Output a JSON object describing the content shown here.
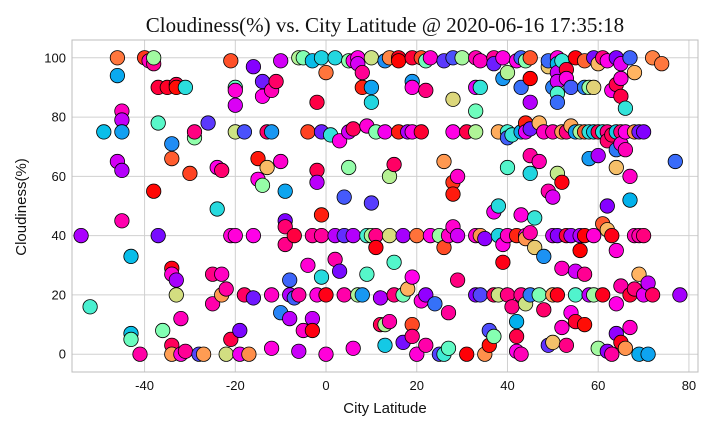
{
  "chart_data": {
    "type": "scatter",
    "title": "Cloudiness(%) vs. City Latitude @ 2020-06-16 17:35:18",
    "xlabel": "City Latitude",
    "ylabel": "Cloudiness(%)",
    "xlim": [
      -56,
      82
    ],
    "ylim": [
      -6,
      106
    ],
    "xticks": [
      -40,
      -20,
      0,
      20,
      40,
      60,
      80
    ],
    "yticks": [
      0,
      20,
      40,
      60,
      80,
      100
    ],
    "grid": true,
    "marker_edge_color": "#000000",
    "colormap": "rainbow",
    "points": [
      [
        -54,
        40
      ],
      [
        -52,
        16
      ],
      [
        -49,
        75
      ],
      [
        -46,
        94
      ],
      [
        -46,
        100
      ],
      [
        -45,
        82
      ],
      [
        -45,
        79
      ],
      [
        -45,
        75
      ],
      [
        -46,
        65
      ],
      [
        -45,
        62
      ],
      [
        -45,
        45
      ],
      [
        -43,
        33
      ],
      [
        -43,
        7
      ],
      [
        -43,
        5
      ],
      [
        -41,
        0
      ],
      [
        -40,
        100
      ],
      [
        -39,
        99
      ],
      [
        -38,
        98
      ],
      [
        -38,
        55
      ],
      [
        -38,
        100
      ],
      [
        -37,
        90
      ],
      [
        -37,
        78
      ],
      [
        -37,
        40
      ],
      [
        -36,
        8
      ],
      [
        -35,
        90
      ],
      [
        -34,
        66
      ],
      [
        -34,
        71
      ],
      [
        -34,
        29
      ],
      [
        -34,
        27
      ],
      [
        -34,
        3
      ],
      [
        -34,
        0
      ],
      [
        -33,
        91
      ],
      [
        -33,
        90
      ],
      [
        -33,
        20
      ],
      [
        -33,
        25
      ],
      [
        -32,
        12
      ],
      [
        -32,
        0
      ],
      [
        -31,
        1
      ],
      [
        -31,
        90
      ],
      [
        -30,
        61
      ],
      [
        -29,
        73
      ],
      [
        -29,
        75
      ],
      [
        -28,
        0
      ],
      [
        -27,
        0
      ],
      [
        -26,
        78
      ],
      [
        -25,
        27
      ],
      [
        -25,
        17
      ],
      [
        -24,
        63
      ],
      [
        -24,
        49
      ],
      [
        -23,
        27
      ],
      [
        -23,
        20
      ],
      [
        -23,
        62
      ],
      [
        -22,
        22
      ],
      [
        -22,
        0
      ],
      [
        -21,
        40
      ],
      [
        -21,
        5
      ],
      [
        -21,
        99
      ],
      [
        -20,
        90
      ],
      [
        -20,
        89
      ],
      [
        -20,
        84
      ],
      [
        -20,
        75
      ],
      [
        -20,
        40
      ],
      [
        -19,
        0
      ],
      [
        -19,
        8
      ],
      [
        -18,
        75
      ],
      [
        -18,
        20
      ],
      [
        -17,
        0
      ],
      [
        -16,
        97
      ],
      [
        -16,
        40
      ],
      [
        -16,
        19
      ],
      [
        -15,
        59
      ],
      [
        -15,
        66
      ],
      [
        -14,
        57
      ],
      [
        -14,
        92
      ],
      [
        -14,
        87
      ],
      [
        -13,
        75
      ],
      [
        -13,
        63
      ],
      [
        -12,
        89
      ],
      [
        -12,
        75
      ],
      [
        -12,
        20
      ],
      [
        -12,
        2
      ],
      [
        -11,
        92
      ],
      [
        -10,
        99
      ],
      [
        -10,
        14
      ],
      [
        -10,
        65
      ],
      [
        -9,
        55
      ],
      [
        -9,
        45
      ],
      [
        -9,
        43
      ],
      [
        -9,
        37
      ],
      [
        -8,
        25
      ],
      [
        -8,
        20
      ],
      [
        -8,
        12
      ],
      [
        -7,
        40
      ],
      [
        -7,
        19
      ],
      [
        -6,
        20
      ],
      [
        -6,
        1
      ],
      [
        -6,
        100
      ],
      [
        -5,
        100
      ],
      [
        -5,
        8
      ],
      [
        -4,
        75
      ],
      [
        -4,
        30
      ],
      [
        -3,
        99
      ],
      [
        -3,
        40
      ],
      [
        -3,
        12
      ],
      [
        -3,
        8
      ],
      [
        -2,
        85
      ],
      [
        -2,
        62
      ],
      [
        -2,
        58
      ],
      [
        -2,
        20
      ],
      [
        -1,
        100
      ],
      [
        -1,
        75
      ],
      [
        -1,
        47
      ],
      [
        -1,
        40
      ],
      [
        -1,
        26
      ],
      [
        0,
        0
      ],
      [
        0,
        95
      ],
      [
        0,
        20
      ],
      [
        1,
        74
      ],
      [
        2,
        100
      ],
      [
        2,
        40
      ],
      [
        2,
        32
      ],
      [
        3,
        28
      ],
      [
        3,
        72
      ],
      [
        4,
        53
      ],
      [
        4,
        40
      ],
      [
        4,
        20
      ],
      [
        5,
        63
      ],
      [
        5,
        75
      ],
      [
        5,
        99
      ],
      [
        6,
        99
      ],
      [
        6,
        76
      ],
      [
        6,
        40
      ],
      [
        6,
        2
      ],
      [
        7,
        100
      ],
      [
        7,
        98
      ],
      [
        7,
        20
      ],
      [
        8,
        90
      ],
      [
        8,
        95
      ],
      [
        8,
        20
      ],
      [
        9,
        77
      ],
      [
        9,
        40
      ],
      [
        9,
        27
      ],
      [
        10,
        100
      ],
      [
        10,
        90
      ],
      [
        10,
        85
      ],
      [
        10,
        51
      ],
      [
        10,
        40
      ],
      [
        11,
        75
      ],
      [
        11,
        40
      ],
      [
        11,
        36
      ],
      [
        12,
        19
      ],
      [
        12,
        10
      ],
      [
        13,
        99
      ],
      [
        13,
        75
      ],
      [
        13,
        10
      ],
      [
        13,
        3
      ],
      [
        14,
        100
      ],
      [
        14,
        60
      ],
      [
        14,
        40
      ],
      [
        14,
        11
      ],
      [
        15,
        64
      ],
      [
        15,
        31
      ],
      [
        15,
        20
      ],
      [
        16,
        100
      ],
      [
        16,
        99
      ],
      [
        16,
        75
      ],
      [
        17,
        40
      ],
      [
        17,
        20
      ],
      [
        17,
        4
      ],
      [
        18,
        75
      ],
      [
        18,
        22
      ],
      [
        19,
        100
      ],
      [
        19,
        92
      ],
      [
        19,
        90
      ],
      [
        19,
        75
      ],
      [
        19,
        26
      ],
      [
        19,
        10
      ],
      [
        19,
        6
      ],
      [
        20,
        40
      ],
      [
        20,
        0
      ],
      [
        21,
        100
      ],
      [
        21,
        75
      ],
      [
        21,
        18
      ],
      [
        22,
        99
      ],
      [
        22,
        89
      ],
      [
        22,
        20
      ],
      [
        22,
        3
      ],
      [
        23,
        100
      ],
      [
        23,
        40
      ],
      [
        24,
        17
      ],
      [
        25,
        40
      ],
      [
        25,
        0
      ],
      [
        26,
        99
      ],
      [
        26,
        65
      ],
      [
        26,
        36
      ],
      [
        26,
        0
      ],
      [
        27,
        40
      ],
      [
        27,
        14
      ],
      [
        27,
        2
      ],
      [
        28,
        100
      ],
      [
        28,
        86
      ],
      [
        28,
        75
      ],
      [
        28,
        58
      ],
      [
        28,
        54
      ],
      [
        28,
        43
      ],
      [
        29,
        60
      ],
      [
        29,
        40
      ],
      [
        29,
        25
      ],
      [
        30,
        100
      ],
      [
        31,
        75
      ],
      [
        31,
        0
      ],
      [
        33,
        100
      ],
      [
        33,
        90
      ],
      [
        33,
        82
      ],
      [
        33,
        75
      ],
      [
        33,
        40
      ],
      [
        33,
        20
      ],
      [
        34,
        99
      ],
      [
        34,
        90
      ],
      [
        34,
        40
      ],
      [
        34,
        20
      ],
      [
        35,
        39
      ],
      [
        35,
        0
      ],
      [
        36,
        8
      ],
      [
        36,
        3
      ],
      [
        37,
        100
      ],
      [
        37,
        98
      ],
      [
        37,
        48
      ],
      [
        37,
        20
      ],
      [
        37,
        6
      ],
      [
        38,
        75
      ],
      [
        38,
        50
      ],
      [
        38,
        40
      ],
      [
        38,
        20
      ],
      [
        39,
        100
      ],
      [
        39,
        93
      ],
      [
        39,
        37
      ],
      [
        39,
        31
      ],
      [
        40,
        95
      ],
      [
        40,
        75
      ],
      [
        40,
        73
      ],
      [
        40,
        63
      ],
      [
        40,
        40
      ],
      [
        40,
        20
      ],
      [
        41,
        74
      ],
      [
        41,
        16
      ],
      [
        42,
        11
      ],
      [
        42,
        99
      ],
      [
        42,
        40
      ],
      [
        42,
        6
      ],
      [
        42,
        1
      ],
      [
        43,
        100
      ],
      [
        43,
        90
      ],
      [
        43,
        75
      ],
      [
        43,
        47
      ],
      [
        43,
        20
      ],
      [
        43,
        0
      ],
      [
        44,
        99
      ],
      [
        44,
        78
      ],
      [
        44,
        75
      ],
      [
        44,
        40
      ],
      [
        44,
        39
      ],
      [
        44,
        17
      ],
      [
        45,
        100
      ],
      [
        45,
        93
      ],
      [
        45,
        85
      ],
      [
        45,
        76
      ],
      [
        45,
        67
      ],
      [
        45,
        61
      ],
      [
        45,
        41
      ],
      [
        45,
        20
      ],
      [
        46,
        46
      ],
      [
        46,
        36
      ],
      [
        47,
        78
      ],
      [
        47,
        65
      ],
      [
        47,
        20
      ],
      [
        48,
        75
      ],
      [
        48,
        33
      ],
      [
        48,
        15
      ],
      [
        49,
        97
      ],
      [
        49,
        99
      ],
      [
        49,
        55
      ],
      [
        49,
        3
      ],
      [
        50,
        90
      ],
      [
        50,
        75
      ],
      [
        50,
        53
      ],
      [
        50,
        40
      ],
      [
        50,
        20
      ],
      [
        50,
        4
      ],
      [
        51,
        100
      ],
      [
        51,
        98
      ],
      [
        51,
        95
      ],
      [
        51,
        92
      ],
      [
        51,
        88
      ],
      [
        51,
        85
      ],
      [
        51,
        61
      ],
      [
        51,
        40
      ],
      [
        51,
        20
      ],
      [
        52,
        99
      ],
      [
        52,
        75
      ],
      [
        52,
        58
      ],
      [
        52,
        29
      ],
      [
        52,
        9
      ],
      [
        53,
        96
      ],
      [
        53,
        93
      ],
      [
        53,
        75
      ],
      [
        53,
        40
      ],
      [
        53,
        3
      ],
      [
        54,
        90
      ],
      [
        54,
        77
      ],
      [
        54,
        40
      ],
      [
        54,
        14
      ],
      [
        55,
        100
      ],
      [
        55,
        75
      ],
      [
        55,
        28
      ],
      [
        55,
        20
      ],
      [
        55,
        11
      ],
      [
        56,
        75
      ],
      [
        56,
        40
      ],
      [
        56,
        35
      ],
      [
        57,
        99
      ],
      [
        57,
        90
      ],
      [
        57,
        75
      ],
      [
        57,
        40
      ],
      [
        57,
        27
      ],
      [
        57,
        10
      ],
      [
        58,
        90
      ],
      [
        58,
        75
      ],
      [
        58,
        66
      ],
      [
        58,
        20
      ],
      [
        59,
        100
      ],
      [
        59,
        90
      ],
      [
        59,
        75
      ],
      [
        59,
        40
      ],
      [
        59,
        20
      ],
      [
        60,
        98
      ],
      [
        60,
        75
      ],
      [
        60,
        67
      ],
      [
        60,
        2
      ],
      [
        61,
        100
      ],
      [
        61,
        75
      ],
      [
        61,
        44
      ],
      [
        61,
        20
      ],
      [
        62,
        99
      ],
      [
        62,
        75
      ],
      [
        62,
        72
      ],
      [
        62,
        50
      ],
      [
        62,
        42
      ],
      [
        62,
        1
      ],
      [
        63,
        89
      ],
      [
        63,
        74
      ],
      [
        63,
        40
      ],
      [
        63,
        0
      ],
      [
        64,
        100
      ],
      [
        64,
        91
      ],
      [
        64,
        75
      ],
      [
        64,
        69
      ],
      [
        64,
        63
      ],
      [
        64,
        35
      ],
      [
        64,
        17
      ],
      [
        64,
        7
      ],
      [
        65,
        98
      ],
      [
        65,
        93
      ],
      [
        65,
        87
      ],
      [
        65,
        75
      ],
      [
        65,
        71
      ],
      [
        65,
        23
      ],
      [
        65,
        4
      ],
      [
        66,
        83
      ],
      [
        66,
        75
      ],
      [
        66,
        69
      ],
      [
        66,
        2
      ],
      [
        67,
        100
      ],
      [
        67,
        60
      ],
      [
        67,
        52
      ],
      [
        67,
        20
      ],
      [
        67,
        9
      ],
      [
        68,
        95
      ],
      [
        68,
        75
      ],
      [
        68,
        40
      ],
      [
        68,
        22
      ],
      [
        69,
        75
      ],
      [
        69,
        40
      ],
      [
        69,
        27
      ],
      [
        69,
        0
      ],
      [
        70,
        75
      ],
      [
        70,
        40
      ],
      [
        70,
        20
      ],
      [
        71,
        24
      ],
      [
        71,
        0
      ],
      [
        72,
        100
      ],
      [
        72,
        20
      ],
      [
        74,
        98
      ],
      [
        77,
        65
      ],
      [
        78,
        20
      ]
    ]
  }
}
